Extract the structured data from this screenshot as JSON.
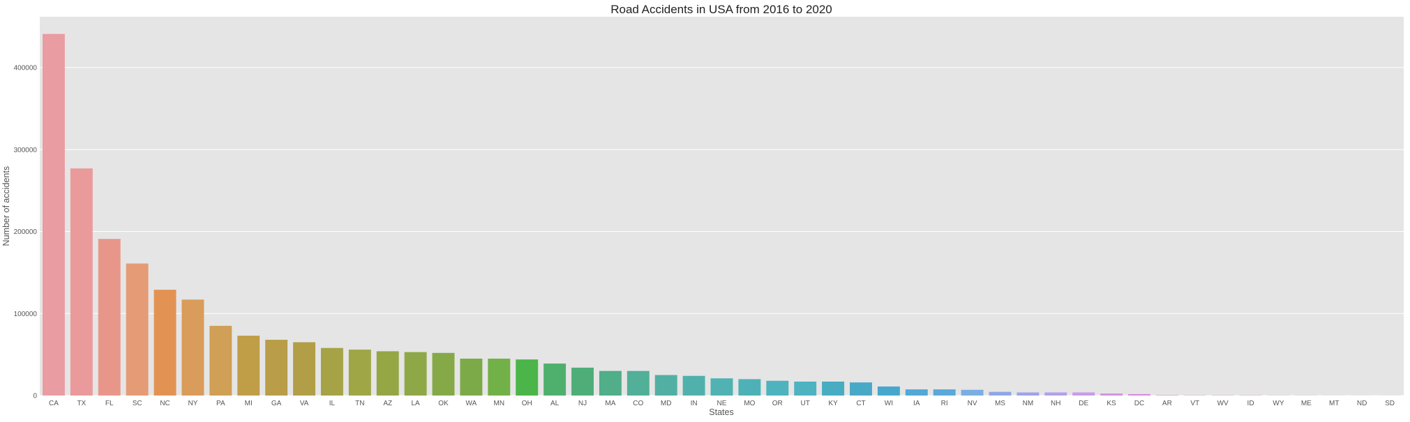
{
  "chart_data": {
    "type": "bar",
    "title": "Road Accidents in USA from 2016 to 2020",
    "xlabel": "States",
    "ylabel": "Number of accidents",
    "ylim": [
      0,
      462000
    ],
    "yticks": [
      0,
      100000,
      200000,
      300000,
      400000
    ],
    "ytick_labels": [
      "0",
      "100000",
      "200000",
      "300000",
      "400000"
    ],
    "grid": true,
    "categories": [
      "CA",
      "TX",
      "FL",
      "SC",
      "NC",
      "NY",
      "PA",
      "MI",
      "GA",
      "VA",
      "IL",
      "TN",
      "AZ",
      "LA",
      "OK",
      "WA",
      "MN",
      "OH",
      "AL",
      "NJ",
      "MA",
      "CO",
      "MD",
      "IN",
      "NE",
      "MO",
      "OR",
      "UT",
      "KY",
      "CT",
      "WI",
      "IA",
      "RI",
      "NV",
      "MS",
      "NM",
      "NH",
      "DE",
      "KS",
      "DC",
      "AR",
      "VT",
      "WV",
      "ID",
      "WY",
      "ME",
      "MT",
      "ND",
      "SD"
    ],
    "values": [
      441000,
      277000,
      191000,
      161000,
      129000,
      117000,
      85000,
      73000,
      68000,
      65000,
      58000,
      56000,
      54000,
      53000,
      52000,
      45000,
      45000,
      44000,
      39000,
      34000,
      30000,
      30000,
      25000,
      24000,
      21000,
      20000,
      18000,
      17000,
      17000,
      16000,
      11000,
      7500,
      7500,
      7000,
      4500,
      3800,
      3800,
      3800,
      2500,
      1800,
      500,
      300,
      300,
      300,
      200,
      200,
      150,
      100,
      100
    ],
    "colors": [
      "#ea9ca3",
      "#ea9a9a",
      "#e9968a",
      "#e59b75",
      "#e29354",
      "#d99c5a",
      "#cfa055",
      "#c09e48",
      "#b99d48",
      "#b29e47",
      "#a5a346",
      "#9ea646",
      "#95a645",
      "#8ea847",
      "#86a948",
      "#7daa48",
      "#72b147",
      "#4bb549",
      "#4fb06e",
      "#4fae78",
      "#50ae88",
      "#51b097",
      "#51b0a3",
      "#50b1ac",
      "#50b2b2",
      "#4eb1b7",
      "#4eb3bd",
      "#4eb2c1",
      "#48acc3",
      "#48a9c6",
      "#47a8cc",
      "#52a8d6",
      "#5aa9da",
      "#7aaee3",
      "#8fa7e6",
      "#a0a3e9",
      "#b4a0ec",
      "#c79ceb",
      "#d193e3",
      "#d98be2",
      "#dc8bd0",
      "#e08bc6",
      "#e48bb6",
      "#e58dac",
      "#e692a6",
      "#e694a2",
      "#e698a2",
      "#e69aa2",
      "#e69ca2"
    ]
  }
}
